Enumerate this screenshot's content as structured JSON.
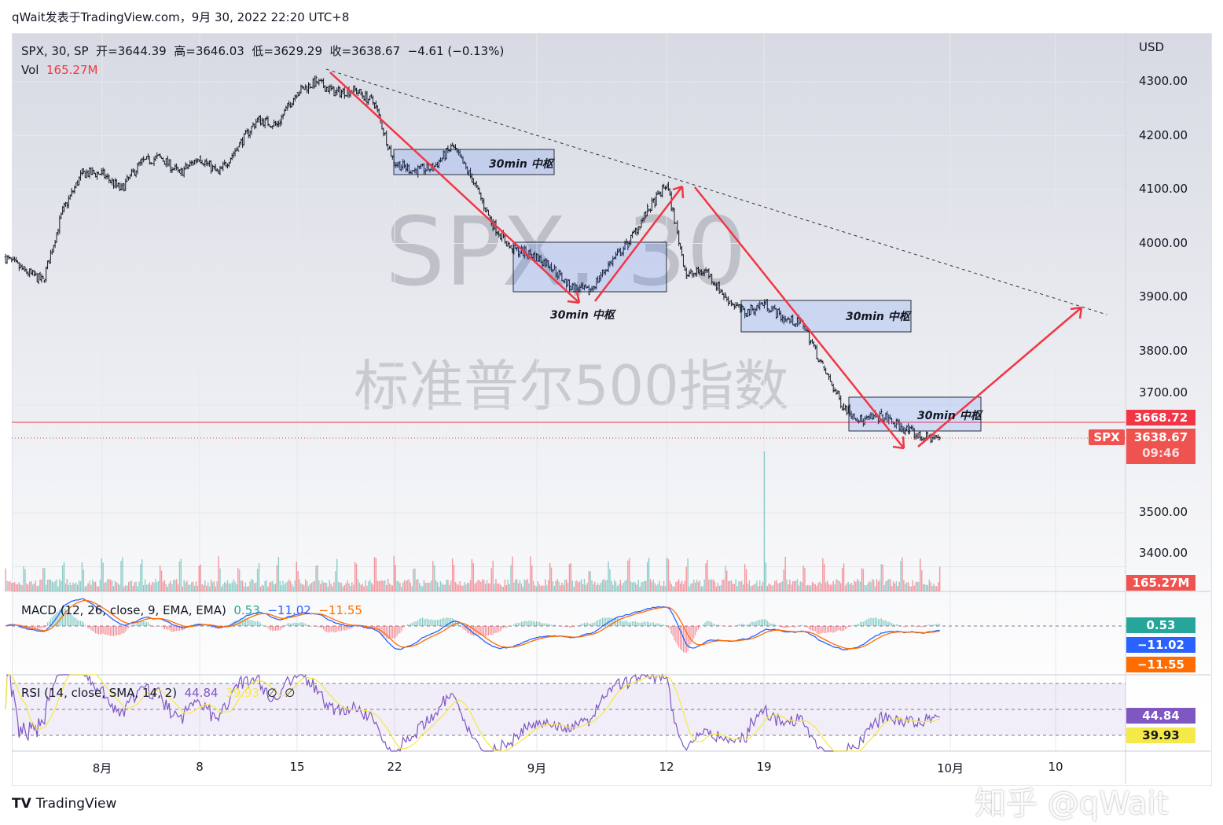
{
  "header": {
    "title": "qWait发表于TradingView.com，9月 30, 2022 22:20 UTC+8"
  },
  "legend": {
    "symbol": "SPX, 30, SP",
    "ohlc": "开=3644.39  高=3646.03  低=3629.29  收=3638.67  −4.61 (−0.13%)",
    "vol_label": "Vol",
    "vol_value": "165.27M"
  },
  "watermark": {
    "symbol": "SPX, 30",
    "name": "标准普尔500指数"
  },
  "price_axis": {
    "currency": "USD",
    "ticks": [
      "4300.00",
      "4200.00",
      "4100.00",
      "4000.00",
      "3900.00",
      "3800.00",
      "3700.00",
      "3500.00",
      "3400.00"
    ],
    "tags": {
      "prev": "3668.72",
      "symbol": "SPX",
      "last": "3638.67",
      "countdown": "09:46",
      "volume": "165.27M"
    }
  },
  "time_axis": [
    "8月",
    "8",
    "15",
    "22",
    "9月",
    "12",
    "19",
    "10月",
    "10"
  ],
  "macd": {
    "label": "MACD (12, 26, close, 9, EMA, EMA)",
    "hist": "0.53",
    "macd": "−11.02",
    "signal": "−11.55",
    "colors": {
      "hist": "#26a69a",
      "macd": "#2962ff",
      "signal": "#ff6d00"
    }
  },
  "rsi": {
    "label": "RSI (14, close, SMA, 14, 2)",
    "rsi": "44.84",
    "sma": "39.93",
    "extra1": "∅",
    "extra2": "∅",
    "colors": {
      "rsi": "#7e57c2",
      "sma": "#f5e94a"
    }
  },
  "annotations": {
    "box_label": "30min 中枢"
  },
  "footer": {
    "brand": "TradingView",
    "zhihu": "知乎 @qWait"
  },
  "colors": {
    "up": "#26a69a",
    "down": "#f23645",
    "arrow": "#f23645"
  },
  "chart_data": {
    "type": "ohlc",
    "interval": "30min",
    "symbol": "SPX",
    "daily_close_approx": [
      [
        "07-26",
        3950
      ],
      [
        "07-27",
        3930
      ],
      [
        "07-28",
        4060
      ],
      [
        "07-29",
        4130
      ],
      [
        "08-01",
        4130
      ],
      [
        "08-02",
        4100
      ],
      [
        "08-03",
        4150
      ],
      [
        "08-04",
        4160
      ],
      [
        "08-05",
        4130
      ],
      [
        "08-08",
        4160
      ],
      [
        "08-09",
        4130
      ],
      [
        "08-10",
        4180
      ],
      [
        "08-11",
        4230
      ],
      [
        "08-12",
        4220
      ],
      [
        "08-15",
        4280
      ],
      [
        "08-16",
        4300
      ],
      [
        "08-17",
        4280
      ],
      [
        "08-18",
        4285
      ],
      [
        "08-19",
        4260
      ],
      [
        "08-22",
        4150
      ],
      [
        "08-23",
        4135
      ],
      [
        "08-24",
        4140
      ],
      [
        "08-25",
        4180
      ],
      [
        "08-26",
        4120
      ],
      [
        "08-29",
        4040
      ],
      [
        "08-30",
        3990
      ],
      [
        "08-31",
        3980
      ],
      [
        "09-01",
        3960
      ],
      [
        "09-02",
        3920
      ],
      [
        "09-06",
        3910
      ],
      [
        "09-07",
        3960
      ],
      [
        "09-08",
        4000
      ],
      [
        "09-09",
        4060
      ],
      [
        "09-12",
        4110
      ],
      [
        "09-13",
        3940
      ],
      [
        "09-14",
        3950
      ],
      [
        "09-15",
        3900
      ],
      [
        "09-16",
        3870
      ],
      [
        "09-19",
        3890
      ],
      [
        "09-20",
        3860
      ],
      [
        "09-21",
        3850
      ],
      [
        "09-22",
        3770
      ],
      [
        "09-23",
        3700
      ],
      [
        "09-26",
        3670
      ],
      [
        "09-27",
        3680
      ],
      [
        "09-28",
        3660
      ],
      [
        "09-29",
        3640
      ],
      [
        "09-30",
        3638.67
      ]
    ],
    "ylim": [
      3400,
      4350
    ]
  }
}
